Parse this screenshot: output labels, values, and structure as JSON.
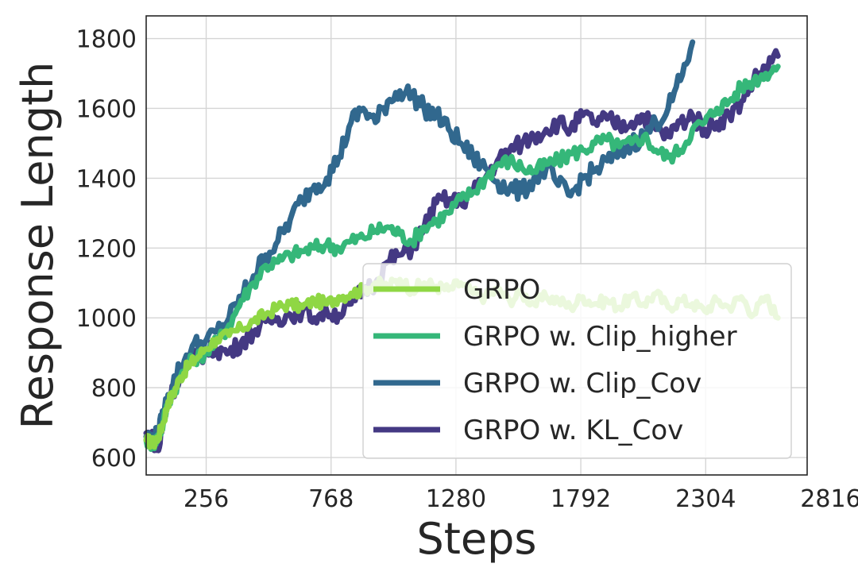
{
  "chart_data": {
    "type": "line",
    "xlabel": "Steps",
    "ylabel": "Response Length",
    "xlim": [
      10,
      2720
    ],
    "ylim": [
      550,
      1865
    ],
    "x_ticks": [
      256,
      768,
      1280,
      1792,
      2304,
      2816
    ],
    "y_ticks": [
      600,
      800,
      1000,
      1200,
      1400,
      1600,
      1800
    ],
    "grid": true,
    "legend": "lower-right",
    "series": [
      {
        "name": "GRPO",
        "color": "#8fd744",
        "x": [
          10,
          40,
          60,
          80,
          100,
          120,
          150,
          180,
          210,
          250,
          300,
          350,
          400,
          450,
          500,
          550,
          600,
          650,
          700,
          750,
          800,
          850,
          900,
          950,
          1000,
          1050,
          1100,
          1150,
          1200,
          1250,
          1300,
          1350,
          1400,
          1450,
          1500,
          1550,
          1600,
          1650,
          1700,
          1750,
          1800,
          1850,
          1900,
          1950,
          2000,
          2050,
          2100,
          2150,
          2200,
          2250,
          2300,
          2350,
          2400,
          2450,
          2500,
          2550,
          2600
        ],
        "values": [
          650,
          640,
          660,
          700,
          760,
          780,
          830,
          860,
          880,
          910,
          940,
          950,
          970,
          990,
          1010,
          1030,
          1040,
          1030,
          1050,
          1040,
          1060,
          1070,
          1080,
          1100,
          1090,
          1110,
          1080,
          1100,
          1090,
          1080,
          1100,
          1070,
          1060,
          1080,
          1050,
          1070,
          1040,
          1060,
          1050,
          1030,
          1060,
          1040,
          1050,
          1030,
          1060,
          1040,
          1070,
          1030,
          1050,
          1040,
          1020,
          1050,
          1030,
          1060,
          1010,
          1060,
          1000
        ]
      },
      {
        "name": "GRPO w. Clip_higher",
        "color": "#35b779",
        "x": [
          10,
          40,
          60,
          80,
          100,
          150,
          200,
          250,
          300,
          350,
          400,
          450,
          500,
          550,
          600,
          650,
          700,
          750,
          800,
          850,
          900,
          950,
          1000,
          1050,
          1100,
          1150,
          1200,
          1250,
          1300,
          1350,
          1400,
          1450,
          1500,
          1550,
          1600,
          1650,
          1700,
          1750,
          1800,
          1850,
          1900,
          1950,
          2000,
          2050,
          2100,
          2150,
          2200,
          2250,
          2300,
          2350,
          2400,
          2450,
          2500,
          2550,
          2600
        ],
        "values": [
          650,
          640,
          660,
          700,
          760,
          830,
          880,
          900,
          930,
          980,
          1050,
          1100,
          1150,
          1160,
          1180,
          1190,
          1200,
          1210,
          1200,
          1220,
          1230,
          1250,
          1260,
          1240,
          1220,
          1260,
          1280,
          1300,
          1340,
          1360,
          1400,
          1440,
          1450,
          1430,
          1420,
          1440,
          1450,
          1470,
          1480,
          1500,
          1510,
          1490,
          1500,
          1520,
          1480,
          1460,
          1480,
          1540,
          1560,
          1600,
          1620,
          1660,
          1680,
          1700,
          1720
        ]
      },
      {
        "name": "GRPO w. Clip_Cov",
        "color": "#31688e",
        "x": [
          10,
          40,
          60,
          80,
          100,
          150,
          200,
          250,
          300,
          350,
          400,
          450,
          500,
          550,
          600,
          650,
          700,
          750,
          800,
          850,
          900,
          950,
          1000,
          1050,
          1100,
          1150,
          1200,
          1250,
          1300,
          1350,
          1400,
          1450,
          1500,
          1550,
          1600,
          1650,
          1700,
          1750,
          1800,
          1850,
          1900,
          1950,
          2000,
          2050,
          2100,
          2150,
          2200,
          2250
        ],
        "values": [
          660,
          650,
          670,
          720,
          780,
          860,
          920,
          930,
          960,
          1000,
          1060,
          1120,
          1180,
          1220,
          1280,
          1340,
          1380,
          1400,
          1460,
          1560,
          1600,
          1560,
          1620,
          1650,
          1640,
          1600,
          1580,
          1540,
          1500,
          1460,
          1430,
          1390,
          1370,
          1360,
          1400,
          1430,
          1380,
          1350,
          1400,
          1420,
          1450,
          1470,
          1500,
          1520,
          1560,
          1600,
          1680,
          1790
        ]
      },
      {
        "name": "GRPO w. KL_Cov",
        "color": "#443983",
        "x": [
          10,
          40,
          60,
          80,
          100,
          150,
          200,
          250,
          300,
          350,
          400,
          450,
          500,
          550,
          600,
          650,
          700,
          750,
          800,
          850,
          900,
          950,
          1000,
          1050,
          1100,
          1150,
          1200,
          1250,
          1300,
          1350,
          1400,
          1450,
          1500,
          1550,
          1600,
          1650,
          1700,
          1750,
          1800,
          1850,
          1900,
          1950,
          2000,
          2050,
          2100,
          2150,
          2200,
          2250,
          2300,
          2350,
          2400,
          2450,
          2500,
          2550,
          2600
        ],
        "values": [
          670,
          650,
          620,
          700,
          760,
          840,
          880,
          900,
          910,
          900,
          930,
          960,
          990,
          1000,
          1010,
          1020,
          1000,
          1020,
          1010,
          1040,
          1080,
          1100,
          1160,
          1180,
          1200,
          1260,
          1330,
          1340,
          1330,
          1360,
          1400,
          1450,
          1480,
          1500,
          1520,
          1540,
          1560,
          1540,
          1580,
          1560,
          1570,
          1550,
          1560,
          1580,
          1540,
          1520,
          1560,
          1580,
          1540,
          1560,
          1580,
          1620,
          1680,
          1720,
          1750
        ]
      }
    ]
  }
}
